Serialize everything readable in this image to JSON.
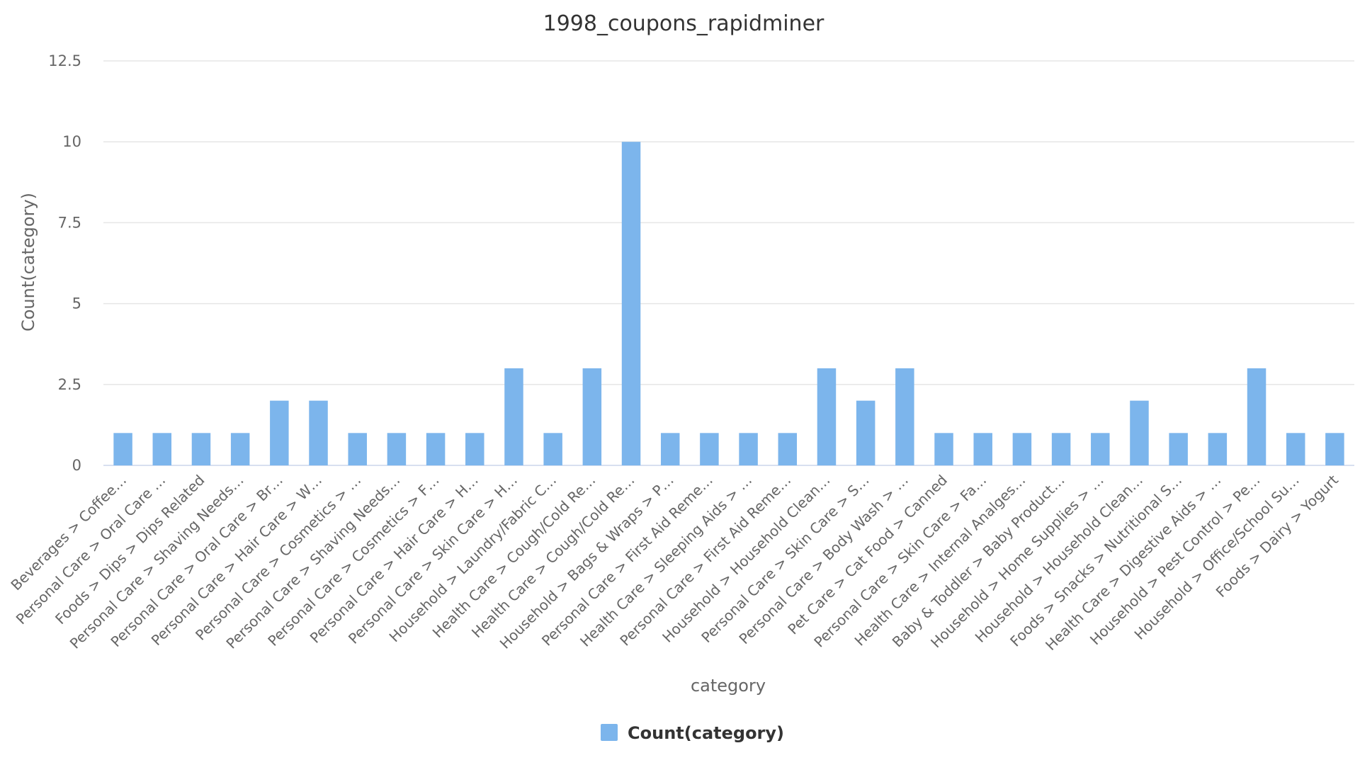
{
  "chart_data": {
    "type": "bar",
    "title": "1998_coupons_rapidminer",
    "xlabel": "category",
    "ylabel": "Count(category)",
    "ylim": [
      0,
      12.5
    ],
    "yticks": [
      "0",
      "2.5",
      "5",
      "7.5",
      "10",
      "12.5"
    ],
    "grid": true,
    "legend_position": "bottom-center",
    "categories": [
      "Beverages > Coffee…",
      "Personal Care > Oral Care …",
      "Foods > Dips > Dips Related",
      "Personal Care > Shaving Needs…",
      "Personal Care > Oral Care > Br…",
      "Personal Care > Hair Care > W…",
      "Personal Care > Cosmetics > …",
      "Personal Care > Shaving Needs…",
      "Personal Care > Cosmetics > F…",
      "Personal Care > Hair Care > H…",
      "Personal Care > Skin Care > H…",
      "Household > Laundry/Fabric C…",
      "Health Care > Cough/Cold Re…",
      "Health Care > Cough/Cold Re…",
      "Household > Bags & Wraps > P…",
      "Personal Care > First Aid Reme…",
      "Health Care > Sleeping Aids > …",
      "Personal Care > First Aid Reme…",
      "Household > Household Clean…",
      "Personal Care > Skin Care > S…",
      "Personal Care > Body Wash > …",
      "Pet Care > Cat Food > Canned",
      "Personal Care > Skin Care > Fa…",
      "Health Care > Internal Analges…",
      "Baby & Toddler > Baby Product…",
      "Household > Home Supplies > …",
      "Household > Household Clean…",
      "Foods > Snacks > Nutritional S…",
      "Health Care > Digestive Aids > …",
      "Household > Pest Control > Pe…",
      "Household > Office/School Su…",
      "Foods > Dairy > Yogurt"
    ],
    "series": [
      {
        "name": "Count(category)",
        "color": "#7cb5ec",
        "values": [
          1,
          1,
          1,
          1,
          2,
          2,
          1,
          1,
          1,
          1,
          3,
          1,
          3,
          10,
          1,
          1,
          1,
          1,
          3,
          2,
          3,
          1,
          1,
          1,
          1,
          1,
          2,
          1,
          1,
          3,
          1,
          1
        ]
      }
    ]
  }
}
